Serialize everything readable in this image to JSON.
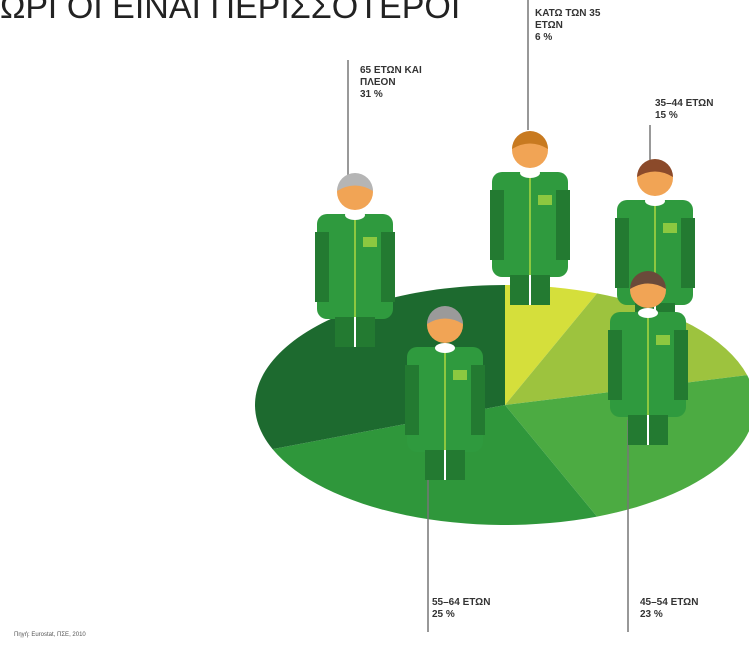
{
  "chart_data": {
    "type": "pie",
    "title": "ΩΡΓΟΙ ΕΙΝΑΙ ΠΕΡΙΣΣΟΤΕΡΟΙ",
    "source": "Πηγή: Eurostat, ΠΣΕ, 2010",
    "categories": [
      "ΚΑΤΩ ΤΩΝ 35 ΕΤΩΝ",
      "35–44 ΕΤΩΝ",
      "45–54 ΕΤΩΝ",
      "55–64 ΕΤΩΝ",
      "65 ΕΤΩΝ ΚΑΙ ΠΛΕΟΝ"
    ],
    "values": [
      6,
      15,
      23,
      25,
      31
    ],
    "value_labels": [
      "6 %",
      "15 %",
      "23 %",
      "25 %",
      "31 %"
    ],
    "colors": [
      "#d5df3b",
      "#9dc33e",
      "#4cab42",
      "#2f973b",
      "#1d6a2f"
    ]
  }
}
